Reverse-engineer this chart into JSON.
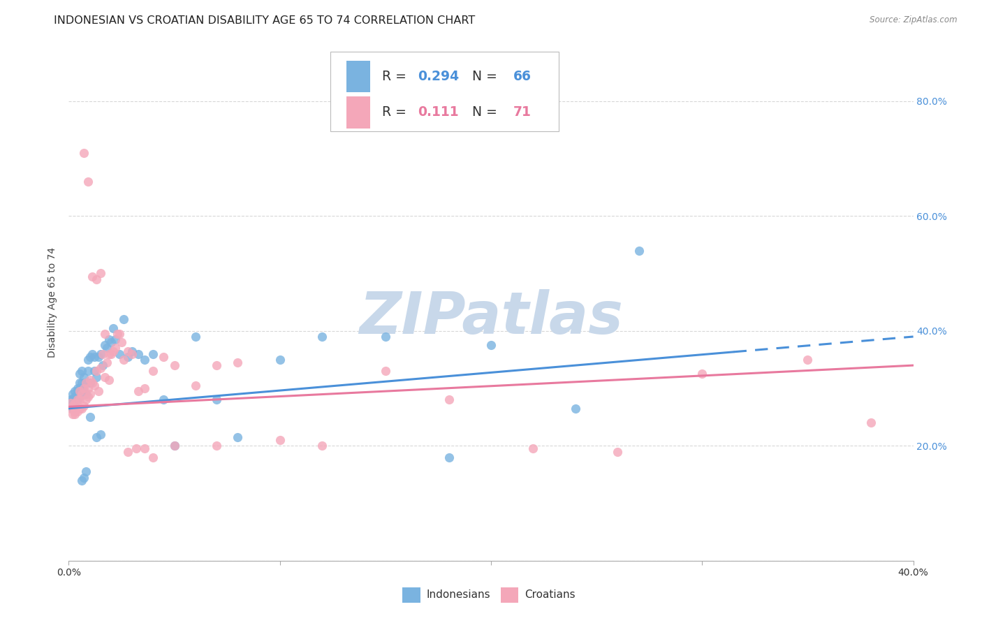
{
  "title": "INDONESIAN VS CROATIAN DISABILITY AGE 65 TO 74 CORRELATION CHART",
  "source": "Source: ZipAtlas.com",
  "ylabel": "Disability Age 65 to 74",
  "xlim": [
    0.0,
    0.4
  ],
  "ylim": [
    0.0,
    0.9
  ],
  "yticks": [
    0.0,
    0.2,
    0.4,
    0.6,
    0.8
  ],
  "xticks": [
    0.0,
    0.1,
    0.2,
    0.3,
    0.4
  ],
  "color_indonesian": "#7ab3e0",
  "color_croatian": "#f4a7b9",
  "color_indonesian_line": "#4a90d9",
  "color_croatian_line": "#e8799e",
  "R_indonesian": 0.294,
  "N_indonesian": 66,
  "R_croatian": 0.111,
  "N_croatian": 71,
  "indonesian_x": [
    0.001,
    0.001,
    0.002,
    0.002,
    0.002,
    0.002,
    0.003,
    0.003,
    0.003,
    0.003,
    0.004,
    0.004,
    0.004,
    0.005,
    0.005,
    0.005,
    0.005,
    0.006,
    0.006,
    0.006,
    0.007,
    0.007,
    0.008,
    0.008,
    0.009,
    0.009,
    0.01,
    0.01,
    0.011,
    0.012,
    0.012,
    0.013,
    0.014,
    0.015,
    0.016,
    0.017,
    0.018,
    0.019,
    0.02,
    0.021,
    0.022,
    0.024,
    0.026,
    0.028,
    0.03,
    0.033,
    0.036,
    0.04,
    0.045,
    0.05,
    0.06,
    0.07,
    0.08,
    0.1,
    0.12,
    0.15,
    0.18,
    0.2,
    0.24,
    0.27,
    0.01,
    0.006,
    0.007,
    0.008,
    0.013,
    0.015
  ],
  "indonesian_y": [
    0.27,
    0.28,
    0.265,
    0.27,
    0.28,
    0.29,
    0.27,
    0.275,
    0.285,
    0.295,
    0.28,
    0.295,
    0.3,
    0.285,
    0.3,
    0.31,
    0.325,
    0.29,
    0.31,
    0.33,
    0.295,
    0.32,
    0.29,
    0.31,
    0.33,
    0.35,
    0.31,
    0.355,
    0.36,
    0.33,
    0.355,
    0.32,
    0.355,
    0.36,
    0.34,
    0.375,
    0.37,
    0.385,
    0.38,
    0.405,
    0.385,
    0.36,
    0.42,
    0.355,
    0.365,
    0.36,
    0.35,
    0.36,
    0.28,
    0.2,
    0.39,
    0.28,
    0.215,
    0.35,
    0.39,
    0.39,
    0.18,
    0.375,
    0.265,
    0.54,
    0.25,
    0.14,
    0.145,
    0.155,
    0.215,
    0.22
  ],
  "croatian_x": [
    0.001,
    0.001,
    0.002,
    0.002,
    0.003,
    0.003,
    0.003,
    0.004,
    0.004,
    0.004,
    0.005,
    0.005,
    0.005,
    0.006,
    0.006,
    0.007,
    0.007,
    0.008,
    0.008,
    0.009,
    0.009,
    0.01,
    0.01,
    0.011,
    0.012,
    0.013,
    0.014,
    0.015,
    0.016,
    0.017,
    0.018,
    0.019,
    0.02,
    0.022,
    0.024,
    0.026,
    0.028,
    0.03,
    0.033,
    0.036,
    0.04,
    0.045,
    0.05,
    0.06,
    0.07,
    0.08,
    0.1,
    0.12,
    0.15,
    0.18,
    0.22,
    0.26,
    0.3,
    0.35,
    0.007,
    0.009,
    0.011,
    0.013,
    0.015,
    0.017,
    0.019,
    0.021,
    0.023,
    0.025,
    0.028,
    0.032,
    0.036,
    0.04,
    0.05,
    0.07,
    0.38
  ],
  "croatian_y": [
    0.265,
    0.275,
    0.255,
    0.27,
    0.255,
    0.26,
    0.275,
    0.26,
    0.265,
    0.28,
    0.265,
    0.28,
    0.295,
    0.265,
    0.29,
    0.27,
    0.3,
    0.28,
    0.31,
    0.285,
    0.3,
    0.29,
    0.315,
    0.31,
    0.305,
    0.33,
    0.295,
    0.335,
    0.36,
    0.32,
    0.345,
    0.315,
    0.36,
    0.37,
    0.395,
    0.35,
    0.365,
    0.36,
    0.295,
    0.3,
    0.33,
    0.355,
    0.34,
    0.305,
    0.34,
    0.345,
    0.21,
    0.2,
    0.33,
    0.28,
    0.195,
    0.19,
    0.325,
    0.35,
    0.71,
    0.66,
    0.495,
    0.49,
    0.5,
    0.395,
    0.36,
    0.365,
    0.395,
    0.38,
    0.19,
    0.195,
    0.195,
    0.18,
    0.2,
    0.2,
    0.24
  ],
  "trend_indonesian_x0": 0.0,
  "trend_indonesian_y0": 0.265,
  "trend_indonesian_x1": 0.4,
  "trend_indonesian_y1": 0.39,
  "trend_indonesian_dash_start": 0.315,
  "trend_croatian_x0": 0.0,
  "trend_croatian_y0": 0.268,
  "trend_croatian_x1": 0.4,
  "trend_croatian_y1": 0.34,
  "background_color": "#ffffff",
  "grid_color": "#d8d8d8",
  "title_fontsize": 11.5,
  "axis_label_fontsize": 10,
  "tick_fontsize": 10,
  "watermark_text": "ZIPatlas",
  "watermark_color": "#c8d8ea",
  "watermark_fontsize": 60,
  "legend_label1": "Indonesians",
  "legend_label2": "Croatians"
}
